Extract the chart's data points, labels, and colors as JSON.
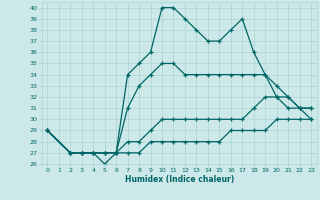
{
  "xlabel": "Humidex (Indice chaleur)",
  "xlim": [
    -0.5,
    23.5
  ],
  "ylim": [
    26,
    40.5
  ],
  "yticks": [
    26,
    27,
    28,
    29,
    30,
    31,
    32,
    33,
    34,
    35,
    36,
    37,
    38,
    39,
    40
  ],
  "xticks": [
    0,
    1,
    2,
    3,
    4,
    5,
    6,
    7,
    8,
    9,
    10,
    11,
    12,
    13,
    14,
    15,
    16,
    17,
    18,
    19,
    20,
    21,
    22,
    23
  ],
  "bg_color": "#cce8e8",
  "grid_color": "#aad4d4",
  "line_color": "#006666",
  "lines": [
    {
      "x": [
        0,
        2,
        3,
        4,
        5,
        6,
        7,
        8,
        9,
        10,
        11,
        12,
        13,
        14,
        15,
        16,
        17,
        18,
        19,
        20,
        21,
        22,
        23
      ],
      "y": [
        29,
        27,
        27,
        27,
        26,
        27,
        34,
        35,
        36,
        40,
        40,
        39,
        38,
        37,
        37,
        38,
        39,
        36,
        34,
        32,
        31,
        31,
        30
      ]
    },
    {
      "x": [
        0,
        2,
        3,
        4,
        5,
        6,
        7,
        8,
        9,
        10,
        11,
        12,
        13,
        14,
        15,
        16,
        17,
        18,
        19,
        20,
        21,
        22,
        23
      ],
      "y": [
        29,
        27,
        27,
        27,
        27,
        27,
        31,
        33,
        34,
        35,
        35,
        34,
        34,
        34,
        34,
        34,
        34,
        34,
        34,
        33,
        32,
        31,
        31
      ]
    },
    {
      "x": [
        0,
        2,
        3,
        4,
        5,
        6,
        7,
        8,
        9,
        10,
        11,
        12,
        13,
        14,
        15,
        16,
        17,
        18,
        19,
        20,
        21,
        22,
        23
      ],
      "y": [
        29,
        27,
        27,
        27,
        27,
        27,
        28,
        28,
        29,
        30,
        30,
        30,
        30,
        30,
        30,
        30,
        30,
        31,
        32,
        32,
        32,
        31,
        31
      ]
    },
    {
      "x": [
        0,
        2,
        3,
        4,
        5,
        6,
        7,
        8,
        9,
        10,
        11,
        12,
        13,
        14,
        15,
        16,
        17,
        18,
        19,
        20,
        21,
        22,
        23
      ],
      "y": [
        29,
        27,
        27,
        27,
        27,
        27,
        27,
        27,
        28,
        28,
        28,
        28,
        28,
        28,
        28,
        29,
        29,
        29,
        29,
        30,
        30,
        30,
        30
      ]
    }
  ]
}
